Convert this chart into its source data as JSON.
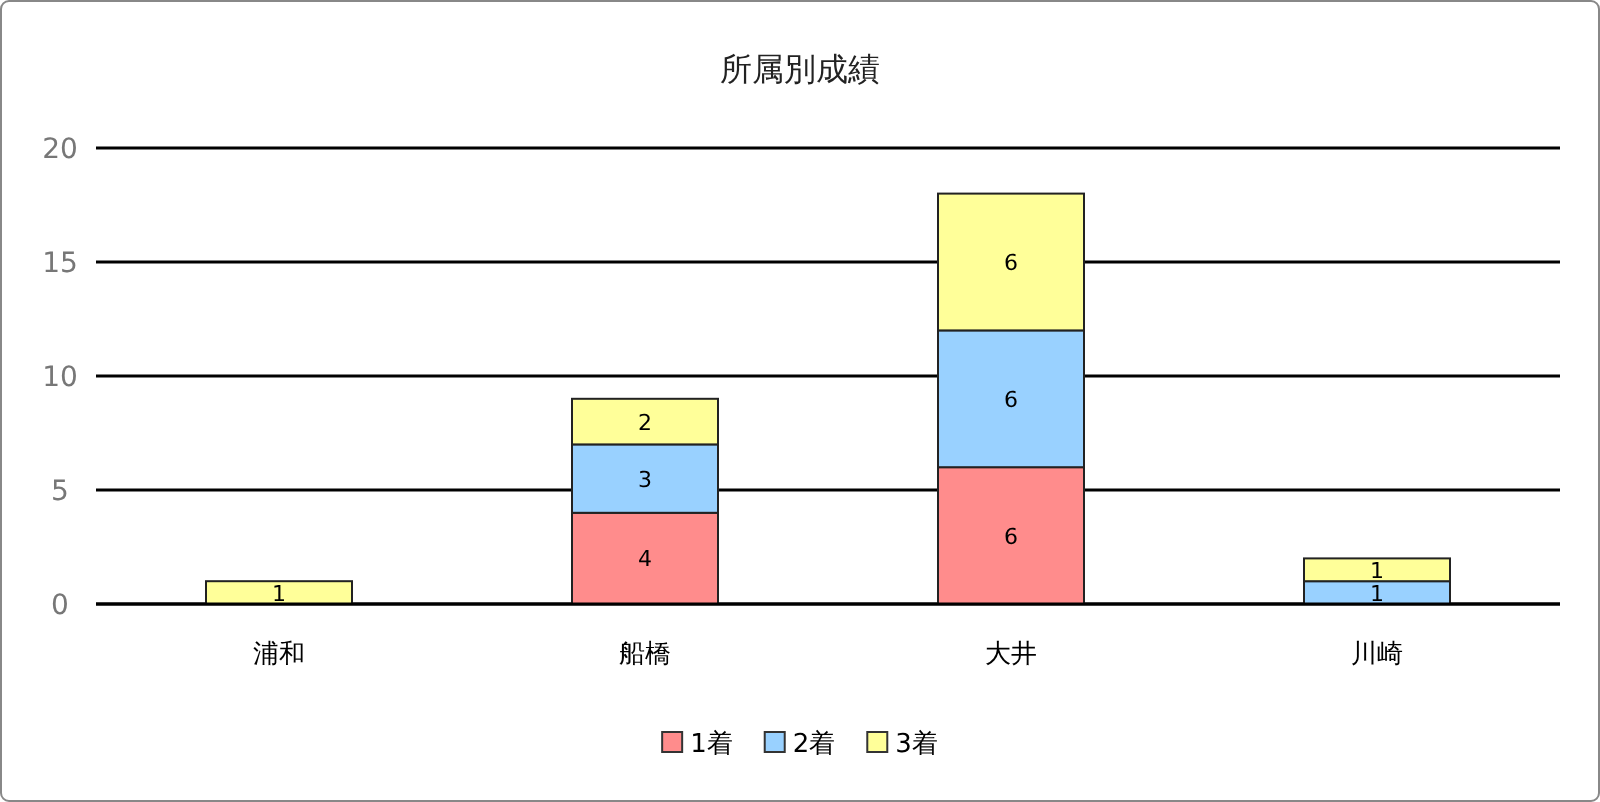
{
  "chart_data": {
    "type": "bar",
    "title": "所属別成績",
    "stacked": true,
    "categories": [
      "浦和",
      "船橋",
      "大井",
      "川崎"
    ],
    "series": [
      {
        "name": "1着",
        "color": "#ff8c8c",
        "values": [
          0,
          4,
          6,
          0
        ],
        "value_labels": [
          null,
          "4",
          "6",
          null
        ]
      },
      {
        "name": "2着",
        "color": "#99d1ff",
        "values": [
          0,
          3,
          6,
          1
        ],
        "value_labels": [
          null,
          "3",
          "6",
          "1"
        ]
      },
      {
        "name": "3着",
        "color": "#ffff99",
        "values": [
          1,
          2,
          6,
          1
        ],
        "value_labels": [
          "1",
          "2",
          "6",
          "1"
        ]
      }
    ],
    "ylim": [
      0,
      20
    ],
    "yticks": [
      0,
      5,
      10,
      15,
      20
    ],
    "grid": "y",
    "legend": "bottom"
  }
}
